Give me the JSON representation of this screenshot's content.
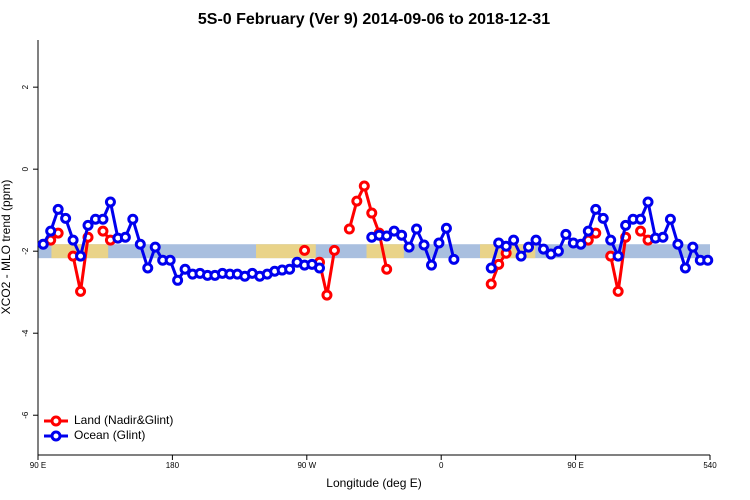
{
  "chart_data": {
    "type": "line",
    "title": "5S-0 February (Ver 9)   2014-09-06 to 2018-12-31",
    "xlabel": "Longitude (deg E)",
    "ylabel": "XCO2 - MLO trend (ppm)",
    "x": [
      93.5,
      98.5,
      103.5,
      108.5,
      113.5,
      118.5,
      123.5,
      128.5,
      133.5,
      138.5,
      143.5,
      148.5,
      153.5,
      158.5,
      163.5,
      168.5,
      173.5,
      178.5,
      183.5,
      188.5,
      193.5,
      198.5,
      203.5,
      208.5,
      213.5,
      218.5,
      223.5,
      228.5,
      233.5,
      238.5,
      243.5,
      248.5,
      253.5,
      258.5,
      263.5,
      268.5,
      273.5,
      278.5,
      283.5,
      288.5,
      293.5,
      298.5,
      303.5,
      308.5,
      313.5,
      318.5,
      323.5,
      328.5,
      333.5,
      338.5,
      343.5,
      348.5,
      353.5,
      358.5,
      363.5,
      368.5,
      373.5,
      378.5,
      383.5,
      388.5,
      393.5,
      398.5,
      403.5,
      408.5,
      413.5,
      418.5,
      423.5,
      428.5,
      433.5,
      438.5,
      443.5,
      448.5,
      453.5,
      458.5,
      463.5,
      468.5,
      473.5,
      478.5,
      483.5,
      488.5,
      493.5,
      498.5,
      503.5,
      508.5,
      513.5,
      518.5,
      523.5,
      528.5,
      533.5,
      538.5
    ],
    "series": [
      {
        "name": "Land (Nadir&Glint)",
        "color": "#ff0000",
        "values": [
          null,
          -1.73,
          -1.56,
          null,
          -2.12,
          -2.98,
          -1.66,
          null,
          -1.51,
          -1.73,
          null,
          null,
          null,
          null,
          null,
          null,
          null,
          null,
          null,
          null,
          null,
          null,
          null,
          null,
          null,
          null,
          null,
          null,
          null,
          null,
          null,
          null,
          null,
          null,
          null,
          -1.98,
          null,
          -2.27,
          -3.07,
          -1.98,
          null,
          -1.46,
          -0.78,
          -0.41,
          -1.07,
          -1.56,
          -2.44,
          null,
          null,
          null,
          null,
          null,
          null,
          null,
          null,
          null,
          null,
          null,
          null,
          null,
          -2.8,
          -2.32,
          -2.05,
          null,
          null,
          null,
          null,
          null,
          null,
          null,
          null,
          null,
          null,
          -1.73,
          -1.56,
          null,
          -2.12,
          -2.98,
          -1.66,
          null,
          -1.51,
          -1.73,
          null,
          null,
          null,
          null,
          null,
          null,
          null,
          null
        ]
      },
      {
        "name": "Ocean (Glint)",
        "color": "#0000ee",
        "values": [
          -1.83,
          -1.51,
          -0.98,
          -1.2,
          -1.73,
          -2.12,
          -1.37,
          -1.22,
          -1.22,
          -0.8,
          -1.68,
          -1.66,
          -1.22,
          -1.83,
          -2.41,
          -1.9,
          -2.22,
          -2.22,
          -2.71,
          -2.44,
          -2.56,
          -2.54,
          -2.59,
          -2.59,
          -2.54,
          -2.56,
          -2.56,
          -2.61,
          -2.54,
          -2.61,
          -2.56,
          -2.49,
          -2.46,
          -2.44,
          -2.27,
          -2.34,
          -2.32,
          -2.41,
          null,
          null,
          null,
          null,
          null,
          null,
          -1.66,
          -1.61,
          -1.63,
          -1.51,
          -1.61,
          -1.9,
          -1.46,
          -1.85,
          -2.34,
          -1.8,
          -1.44,
          -2.2,
          null,
          null,
          null,
          null,
          -2.41,
          -1.8,
          -1.88,
          -1.73,
          -2.12,
          -1.9,
          -1.73,
          -1.95,
          -2.07,
          -2,
          -1.59,
          -1.8,
          -1.83,
          -1.51,
          -0.98,
          -1.2,
          -1.73,
          -2.12,
          -1.37,
          -1.22,
          -1.22,
          -0.8,
          -1.68,
          -1.66,
          -1.22,
          -1.83,
          -2.41,
          -1.9,
          -2.22,
          -2.22
        ]
      }
    ],
    "band_range": [
      -2.17,
      -1.83
    ],
    "band_color": "#a9bfdf",
    "land_color": "#f5d67a",
    "land_segments": [
      [
        99,
        137
      ],
      [
        236,
        276
      ],
      [
        310,
        335
      ],
      [
        386,
        423
      ]
    ],
    "xlim": [
      90,
      540
    ],
    "xticks": [
      {
        "value": 90,
        "label": "90 E"
      },
      180,
      {
        "value": 270,
        "label": "90 W"
      },
      {
        "value": 360,
        "label": "0"
      },
      {
        "value": 450,
        "label": "90 E"
      },
      540
    ],
    "ylim": [
      -6.97,
      3.15
    ],
    "yticks": [
      -6,
      -4,
      -2,
      0,
      2
    ],
    "legend": "bottom-left"
  }
}
